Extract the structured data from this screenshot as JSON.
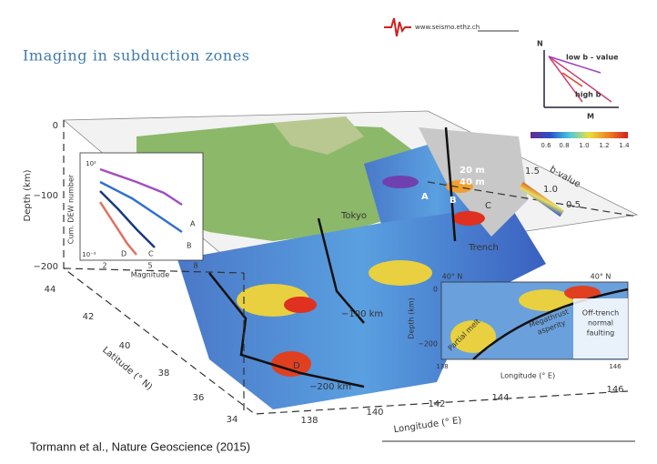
{
  "header": {
    "logo": "www.seismo.ethz.ch",
    "title": "Imaging in subduction zones"
  },
  "b_inset": {
    "y_axis": "N",
    "x_axis": "M",
    "low": "low b - value",
    "high": "high b",
    "colorbar_ticks": [
      "0.6",
      "0.8",
      "1.0",
      "1.2",
      "1.4"
    ]
  },
  "figure": {
    "depth_label": "Depth (km)",
    "depth_ticks": [
      "0",
      "−100",
      "−200"
    ],
    "latitude_label": "Latitude (° N)",
    "latitude_ticks": [
      "44",
      "42",
      "40",
      "38",
      "36",
      "34"
    ],
    "longitude_label": "Longitude (° E)",
    "longitude_ticks": [
      "138",
      "140",
      "142",
      "144",
      "146"
    ],
    "map_labels": {
      "tokyo": "Tokyo",
      "trench": "Trench",
      "slip_20": "20 m",
      "slip_40": "40 m",
      "a": "A",
      "b": "B",
      "c": "C",
      "d": "D",
      "km100": "−100 km",
      "km200": "−200 km"
    },
    "bvalue_legend": {
      "label": "b-value",
      "ticks": [
        "1.5",
        "1.0",
        "0.5"
      ]
    },
    "fmd_inset": {
      "y_label": "Cum. DEW number",
      "y_top": "10²",
      "y_bottom": "10⁻²",
      "x_ticks": [
        "2",
        "5",
        "8"
      ],
      "x_label": "Magnitude",
      "curves": [
        "A",
        "B",
        "D",
        "C"
      ]
    },
    "section_inset": {
      "lat_left": "40° N",
      "lat_right": "40° N",
      "depth_ticks": [
        "0",
        "−200"
      ],
      "depth_label": "Depth (km)",
      "lon_ticks": [
        "138",
        "146"
      ],
      "lon_label": "Longitude (° E)",
      "melt": "Partial melt",
      "asperity": [
        "Megathrust",
        "asperity"
      ],
      "faulting": [
        "Off-trench",
        "normal",
        "faulting"
      ]
    }
  },
  "citation": "Tormann et al., Nature Geoscience (2015)"
}
